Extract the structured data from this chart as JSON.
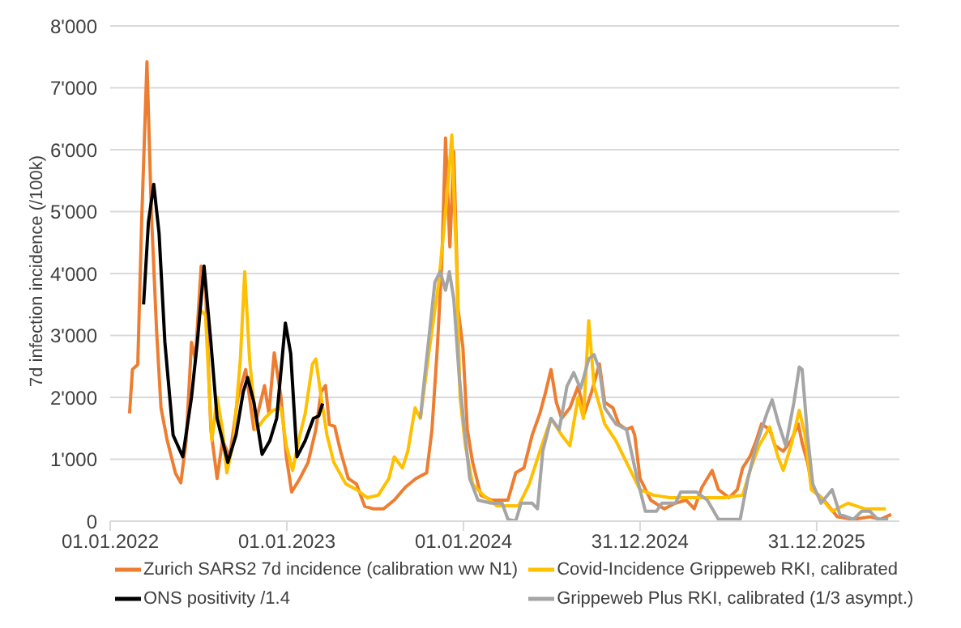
{
  "chart_data": {
    "type": "line",
    "ylabel": "7d infection incidence (/100k)",
    "xlim": [
      "2022-01-01",
      "2026-06-20"
    ],
    "xticks": [
      {
        "value": "2022-01-01",
        "label": "01.01.2022"
      },
      {
        "value": "2023-01-01",
        "label": "01.01.2023"
      },
      {
        "value": "2024-01-01",
        "label": "01.01.2024"
      },
      {
        "value": "2024-12-31",
        "label": "31.12.2024"
      },
      {
        "value": "2025-12-31",
        "label": "31.12.2025"
      }
    ],
    "ylim": [
      0,
      8000
    ],
    "yticks": [
      {
        "value": 0,
        "label": "0"
      },
      {
        "value": 1000,
        "label": "1'000"
      },
      {
        "value": 2000,
        "label": "2'000"
      },
      {
        "value": 3000,
        "label": "3'000"
      },
      {
        "value": 4000,
        "label": "4'000"
      },
      {
        "value": 5000,
        "label": "5'000"
      },
      {
        "value": 6000,
        "label": "6'000"
      },
      {
        "value": 7000,
        "label": "7'000"
      },
      {
        "value": 8000,
        "label": "8'000"
      }
    ],
    "grid": "y",
    "legend": "bottom",
    "marker": "none",
    "line_style": "solid",
    "series": [
      {
        "name": "Zurich SARS2 7d incidence (calibration ww N1)",
        "color": "#ed7d31",
        "x": [
          "2022-02-10",
          "2022-02-16",
          "2022-02-27",
          "2022-03-07",
          "2022-03-18",
          "2022-03-27",
          "2022-04-07",
          "2022-04-16",
          "2022-04-29",
          "2022-05-16",
          "2022-05-27",
          "2022-06-07",
          "2022-06-18",
          "2022-06-26",
          "2022-07-08",
          "2022-07-17",
          "2022-07-28",
          "2022-08-10",
          "2022-08-21",
          "2022-09-05",
          "2022-09-22",
          "2022-10-08",
          "2022-10-25",
          "2022-11-16",
          "2022-11-25",
          "2022-12-06",
          "2022-12-20",
          "2022-12-31",
          "2023-01-11",
          "2023-01-28",
          "2023-02-14",
          "2023-03-02",
          "2023-03-13",
          "2023-03-22",
          "2023-03-30",
          "2023-04-10",
          "2023-04-22",
          "2023-05-08",
          "2023-05-25",
          "2023-06-11",
          "2023-06-28",
          "2023-07-20",
          "2023-08-11",
          "2023-09-03",
          "2023-09-25",
          "2023-10-17",
          "2023-10-28",
          "2023-11-08",
          "2023-11-17",
          "2023-11-25",
          "2023-12-04",
          "2023-12-12",
          "2023-12-21",
          "2023-12-31",
          "2024-01-09",
          "2024-01-20",
          "2024-02-06",
          "2024-02-28",
          "2024-04-02",
          "2024-04-18",
          "2024-05-05",
          "2024-05-22",
          "2024-06-07",
          "2024-06-19",
          "2024-06-30",
          "2024-07-11",
          "2024-07-22",
          "2024-08-08",
          "2024-08-25",
          "2024-09-07",
          "2024-09-22",
          "2024-10-08",
          "2024-10-19",
          "2024-11-05",
          "2024-11-17",
          "2024-12-03",
          "2024-12-14",
          "2024-12-20",
          "2024-12-31",
          "2025-01-22",
          "2025-02-19",
          "2025-03-14",
          "2025-04-05",
          "2025-04-22",
          "2025-05-08",
          "2025-05-29",
          "2025-06-11",
          "2025-07-03",
          "2025-07-20",
          "2025-07-31",
          "2025-08-15",
          "2025-08-28",
          "2025-09-08",
          "2025-09-25",
          "2025-10-06",
          "2025-10-23",
          "2025-11-08",
          "2025-11-23",
          "2025-12-01",
          "2025-12-12",
          "2025-12-23",
          "2026-01-15",
          "2026-02-12",
          "2026-03-17",
          "2026-04-20",
          "2026-05-12",
          "2026-06-03"
        ],
        "values": [
          1740,
          2450,
          2530,
          4830,
          7420,
          5000,
          3060,
          1830,
          1300,
          770,
          620,
          1300,
          2890,
          2620,
          4120,
          3770,
          1480,
          690,
          1300,
          1040,
          2000,
          2450,
          1480,
          2190,
          1740,
          2720,
          2000,
          1040,
          470,
          690,
          950,
          1480,
          2090,
          2190,
          1560,
          1530,
          1130,
          690,
          600,
          240,
          200,
          200,
          340,
          550,
          690,
          780,
          1480,
          2800,
          4120,
          6190,
          4430,
          5970,
          3420,
          2800,
          1480,
          950,
          420,
          340,
          340,
          780,
          860,
          1390,
          1740,
          2090,
          2450,
          1920,
          1660,
          1830,
          2180,
          1740,
          2090,
          2540,
          1920,
          1830,
          1570,
          1480,
          1520,
          1390,
          690,
          340,
          200,
          290,
          340,
          200,
          550,
          820,
          510,
          380,
          510,
          860,
          1040,
          1300,
          1570,
          1480,
          1220,
          1130,
          1300,
          1570,
          1260,
          950,
          510,
          340,
          70,
          30,
          70,
          30,
          110
        ]
      },
      {
        "name": "Covid-Incidence Grippeweb RKI, calibrated",
        "color": "#ffc000",
        "x": [
          "2022-07-05",
          "2022-07-17",
          "2022-07-30",
          "2022-08-10",
          "2022-08-21",
          "2022-08-30",
          "2022-09-13",
          "2022-09-27",
          "2022-10-06",
          "2022-10-16",
          "2022-10-30",
          "2022-11-16",
          "2022-12-03",
          "2022-12-20",
          "2022-12-31",
          "2023-01-13",
          "2023-01-28",
          "2023-02-08",
          "2023-02-23",
          "2023-03-02",
          "2023-03-13",
          "2023-03-25",
          "2023-04-08",
          "2023-05-03",
          "2023-05-25",
          "2023-06-16",
          "2023-07-09",
          "2023-07-31",
          "2023-08-11",
          "2023-08-28",
          "2023-09-08",
          "2023-09-23",
          "2023-10-04",
          "2023-10-23",
          "2023-11-11",
          "2023-11-22",
          "2023-12-01",
          "2023-12-08",
          "2023-12-18",
          "2023-12-25",
          "2024-01-05",
          "2024-01-20",
          "2024-02-11",
          "2024-03-10",
          "2024-04-24",
          "2024-05-16",
          "2024-06-07",
          "2024-06-30",
          "2024-07-22",
          "2024-08-08",
          "2024-08-25",
          "2024-09-05",
          "2024-09-16",
          "2024-09-27",
          "2024-10-19",
          "2024-11-11",
          "2024-12-03",
          "2024-12-25",
          "2024-12-31",
          "2025-01-28",
          "2025-03-03",
          "2025-04-16",
          "2025-06-22",
          "2025-07-31",
          "2025-08-17",
          "2025-09-03",
          "2025-09-25",
          "2025-10-12",
          "2025-10-23",
          "2025-11-08",
          "2025-11-25",
          "2025-12-07",
          "2025-12-20",
          "2026-01-09",
          "2026-02-01",
          "2026-03-06",
          "2026-04-09",
          "2026-05-23"
        ],
        "values": [
          3420,
          3330,
          1300,
          2000,
          1480,
          780,
          1300,
          2620,
          4030,
          2620,
          1480,
          1660,
          1790,
          1830,
          1220,
          820,
          1390,
          1740,
          2540,
          2620,
          2000,
          1390,
          950,
          600,
          510,
          380,
          420,
          690,
          1040,
          860,
          1130,
          1830,
          1660,
          2800,
          3860,
          4740,
          5530,
          6240,
          4120,
          2000,
          1220,
          600,
          420,
          250,
          250,
          600,
          1130,
          1660,
          1390,
          1220,
          2000,
          1660,
          3240,
          2180,
          1570,
          1300,
          950,
          600,
          510,
          420,
          380,
          380,
          380,
          420,
          860,
          1220,
          1520,
          1040,
          820,
          1220,
          1790,
          1390,
          510,
          380,
          160,
          290,
          200,
          200
        ]
      },
      {
        "name": "ONS positivity /1.4",
        "color": "#000000",
        "x": [
          "2022-03-11",
          "2022-03-21",
          "2022-04-01",
          "2022-04-12",
          "2022-04-24",
          "2022-05-11",
          "2022-05-31",
          "2022-06-18",
          "2022-06-30",
          "2022-07-14",
          "2022-07-28",
          "2022-08-10",
          "2022-09-01",
          "2022-09-18",
          "2022-10-03",
          "2022-10-12",
          "2022-10-25",
          "2022-11-11",
          "2022-11-27",
          "2022-12-11",
          "2022-12-29",
          "2023-01-09",
          "2023-01-22",
          "2023-02-08",
          "2023-02-25",
          "2023-03-08",
          "2023-03-16"
        ],
        "values": [
          3500,
          4830,
          5440,
          4650,
          2890,
          1390,
          1040,
          2000,
          2890,
          4120,
          2890,
          1660,
          950,
          1390,
          2090,
          2320,
          1920,
          1080,
          1300,
          1660,
          3200,
          2710,
          1040,
          1300,
          1660,
          1700,
          1900
        ]
      },
      {
        "name": "Grippeweb Plus RKI, calibrated (1/3 asympt.)",
        "color": "#a5a5a5",
        "x": [
          "2023-10-04",
          "2023-10-12",
          "2023-10-23",
          "2023-11-03",
          "2023-11-14",
          "2023-11-25",
          "2023-12-03",
          "2023-12-12",
          "2023-12-23",
          "2024-01-03",
          "2024-01-14",
          "2024-01-31",
          "2024-02-28",
          "2024-03-21",
          "2024-04-02",
          "2024-04-18",
          "2024-04-29",
          "2024-05-22",
          "2024-06-02",
          "2024-06-13",
          "2024-06-30",
          "2024-07-17",
          "2024-08-02",
          "2024-08-16",
          "2024-08-30",
          "2024-09-16",
          "2024-09-27",
          "2024-10-08",
          "2024-10-19",
          "2024-11-11",
          "2024-12-03",
          "2024-12-25",
          "2025-01-11",
          "2025-02-03",
          "2025-02-14",
          "2025-03-14",
          "2025-03-25",
          "2025-04-27",
          "2025-05-19",
          "2025-06-11",
          "2025-07-26",
          "2025-08-11",
          "2025-08-28",
          "2025-09-19",
          "2025-09-30",
          "2025-10-12",
          "2025-10-28",
          "2025-11-14",
          "2025-11-25",
          "2025-12-01",
          "2025-12-12",
          "2025-12-23",
          "2026-01-09",
          "2026-02-01",
          "2026-02-17",
          "2026-03-17",
          "2026-04-03",
          "2026-04-20",
          "2026-05-06",
          "2026-05-28"
        ],
        "values": [
          1660,
          2270,
          3060,
          3860,
          4030,
          3730,
          4030,
          3590,
          2360,
          1480,
          690,
          340,
          290,
          290,
          30,
          0,
          290,
          290,
          200,
          1130,
          1660,
          1480,
          2180,
          2400,
          2140,
          2620,
          2690,
          2450,
          1830,
          1570,
          1480,
          690,
          160,
          160,
          290,
          290,
          470,
          470,
          340,
          30,
          30,
          690,
          1220,
          1740,
          1960,
          1610,
          1220,
          1920,
          2490,
          2450,
          1390,
          600,
          290,
          510,
          110,
          30,
          160,
          160,
          30,
          30
        ]
      }
    ]
  }
}
